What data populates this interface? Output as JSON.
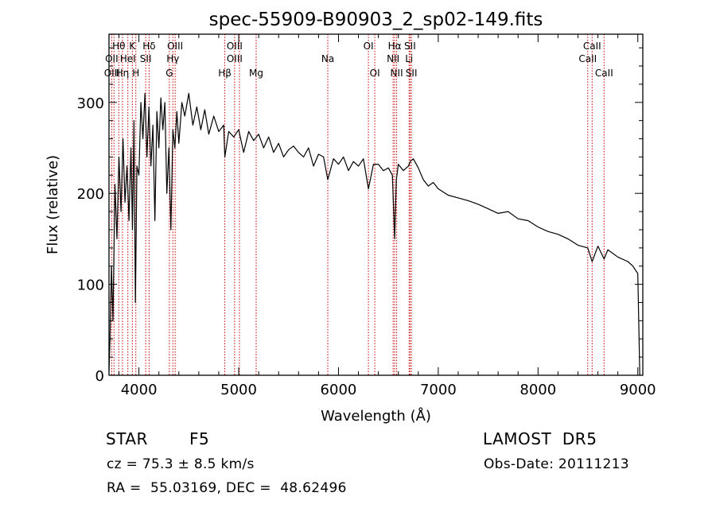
{
  "chart_data": {
    "type": "line",
    "title": "spec-55909-B90903_2_sp02-149.fits",
    "xlabel": "Wavelength (Å)",
    "ylabel": "Flux (relative)",
    "xlim": [
      3700,
      9050
    ],
    "ylim": [
      0,
      375
    ],
    "xticks": [
      4000,
      5000,
      6000,
      7000,
      8000,
      9000
    ],
    "yticks": [
      0,
      100,
      200,
      300
    ],
    "grid": false,
    "series": [
      {
        "color": "#000000",
        "x": [
          3700,
          3710,
          3725,
          3740,
          3760,
          3780,
          3800,
          3820,
          3840,
          3860,
          3880,
          3900,
          3920,
          3935,
          3950,
          3965,
          3980,
          4000,
          4020,
          4040,
          4060,
          4080,
          4100,
          4120,
          4140,
          4160,
          4180,
          4200,
          4220,
          4240,
          4260,
          4280,
          4300,
          4320,
          4340,
          4360,
          4380,
          4400,
          4430,
          4460,
          4500,
          4540,
          4580,
          4620,
          4660,
          4700,
          4750,
          4800,
          4850,
          4861,
          4900,
          4950,
          5000,
          5050,
          5100,
          5150,
          5200,
          5250,
          5300,
          5350,
          5400,
          5450,
          5500,
          5550,
          5600,
          5650,
          5700,
          5750,
          5800,
          5850,
          5893,
          5950,
          6000,
          6050,
          6100,
          6150,
          6200,
          6250,
          6300,
          6350,
          6400,
          6450,
          6500,
          6540,
          6563,
          6580,
          6600,
          6650,
          6700,
          6720,
          6750,
          6800,
          6850,
          6900,
          6950,
          7000,
          7100,
          7200,
          7300,
          7400,
          7500,
          7600,
          7700,
          7800,
          7900,
          8000,
          8100,
          8200,
          8300,
          8400,
          8498,
          8542,
          8600,
          8662,
          8700,
          8800,
          8900,
          8950,
          8980,
          9000,
          9020
        ],
        "y": [
          5,
          40,
          120,
          60,
          210,
          150,
          240,
          180,
          260,
          190,
          230,
          170,
          250,
          160,
          280,
          80,
          230,
          220,
          300,
          260,
          310,
          240,
          295,
          230,
          275,
          170,
          290,
          250,
          305,
          270,
          300,
          200,
          250,
          160,
          270,
          250,
          290,
          255,
          300,
          285,
          310,
          275,
          295,
          270,
          292,
          265,
          285,
          268,
          275,
          240,
          268,
          262,
          270,
          245,
          268,
          258,
          265,
          250,
          262,
          245,
          255,
          240,
          248,
          252,
          245,
          240,
          250,
          230,
          243,
          240,
          215,
          238,
          232,
          240,
          225,
          235,
          230,
          238,
          205,
          232,
          232,
          225,
          228,
          220,
          150,
          215,
          232,
          225,
          230,
          235,
          238,
          228,
          215,
          208,
          212,
          205,
          198,
          195,
          192,
          188,
          183,
          178,
          180,
          172,
          170,
          163,
          158,
          155,
          150,
          143,
          140,
          125,
          142,
          128,
          138,
          130,
          125,
          120,
          115,
          112,
          0
        ]
      }
    ],
    "line_labels": [
      {
        "text": "Hθ",
        "wavelength": 3798,
        "row": 1
      },
      {
        "text": "OII",
        "wavelength": 3727,
        "row": 2
      },
      {
        "text": "OIII",
        "wavelength": 3730,
        "row": 3
      },
      {
        "text": "Hη",
        "wavelength": 3835,
        "row": 3
      },
      {
        "text": "K",
        "wavelength": 3934,
        "row": 1
      },
      {
        "text": "HeI",
        "wavelength": 3889,
        "row": 2
      },
      {
        "text": "H",
        "wavelength": 3969,
        "row": 3
      },
      {
        "text": "Hδ",
        "wavelength": 4102,
        "row": 1
      },
      {
        "text": "SII",
        "wavelength": 4068,
        "row": 2
      },
      {
        "text": "OIII",
        "wavelength": 4363,
        "row": 1
      },
      {
        "text": "Hγ",
        "wavelength": 4340,
        "row": 2
      },
      {
        "text": "G",
        "wavelength": 4305,
        "row": 3
      },
      {
        "text": "OIII",
        "wavelength": 4959,
        "row": 1
      },
      {
        "text": "OIII",
        "wavelength": 4959,
        "row": 2
      },
      {
        "text": "Hβ",
        "wavelength": 4861,
        "row": 3
      },
      {
        "text": "Mg",
        "wavelength": 5175,
        "row": 3
      },
      {
        "text": "Na",
        "wavelength": 5893,
        "row": 2
      },
      {
        "text": "OI",
        "wavelength": 6300,
        "row": 1
      },
      {
        "text": "OI",
        "wavelength": 6364,
        "row": 3
      },
      {
        "text": "Hα",
        "wavelength": 6563,
        "row": 1
      },
      {
        "text": "NII",
        "wavelength": 6548,
        "row": 2
      },
      {
        "text": "NII",
        "wavelength": 6583,
        "row": 3
      },
      {
        "text": "SII",
        "wavelength": 6717,
        "row": 1
      },
      {
        "text": "Li",
        "wavelength": 6708,
        "row": 2
      },
      {
        "text": "SII",
        "wavelength": 6731,
        "row": 3
      },
      {
        "text": "CaII",
        "wavelength": 8542,
        "row": 1
      },
      {
        "text": "CaII",
        "wavelength": 8498,
        "row": 2
      },
      {
        "text": "CaII",
        "wavelength": 8662,
        "row": 3
      }
    ],
    "line_markers": [
      3727,
      3750,
      3798,
      3835,
      3889,
      3934,
      3969,
      4068,
      4102,
      4305,
      4340,
      4363,
      4861,
      4959,
      5007,
      5175,
      5893,
      6300,
      6364,
      6548,
      6563,
      6583,
      6708,
      6717,
      6731,
      8498,
      8542,
      8662
    ],
    "marker_color": "#cc0000"
  },
  "info": {
    "object_type": "STAR",
    "subclass": "F5",
    "survey": "LAMOST  DR5",
    "cz": "cz = 75.3 ± 8.5 km/s",
    "obs_date": "Obs-Date: 20111213",
    "coords": "RA =  55.03169, DEC =  48.62496"
  }
}
